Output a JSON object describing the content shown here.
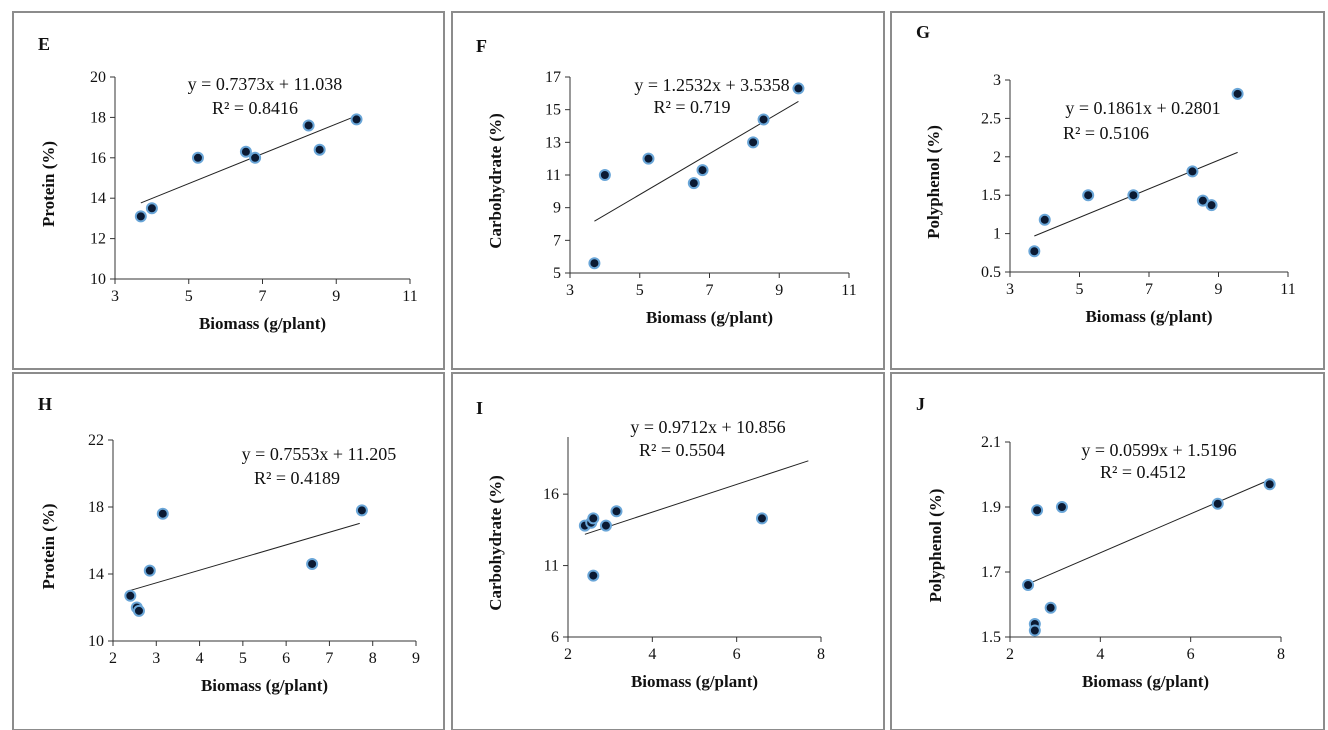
{
  "chart_data": [
    {
      "type": "scatter",
      "panel": "E",
      "xlabel": "Biomass (g/plant)",
      "ylabel": "Protein (%)",
      "xlim": [
        3,
        11
      ],
      "ylim": [
        10,
        20
      ],
      "xticks": [
        "3",
        "5",
        "7",
        "9",
        "11"
      ],
      "yticks": [
        "10",
        "12",
        "14",
        "16",
        "18",
        "20"
      ],
      "x": [
        3.7,
        4.0,
        5.25,
        6.55,
        6.8,
        8.25,
        8.55,
        9.55
      ],
      "y": [
        13.1,
        13.5,
        16.0,
        16.3,
        16.0,
        17.6,
        16.4,
        17.9
      ],
      "equation": "y = 0.7373x + 11.038",
      "r2": "R² = 0.8416",
      "trend_x": [
        3.7,
        9.55
      ]
    },
    {
      "type": "scatter",
      "panel": "F",
      "xlabel": "Biomass (g/plant)",
      "ylabel": "Carbohydrate (%)",
      "xlim": [
        3,
        11
      ],
      "ylim": [
        5,
        17
      ],
      "xticks": [
        "3",
        "5",
        "7",
        "9",
        "11"
      ],
      "yticks": [
        "5",
        "7",
        "9",
        "11",
        "13",
        "15",
        "17"
      ],
      "x": [
        3.7,
        4.0,
        5.25,
        6.55,
        6.8,
        8.25,
        8.55,
        9.55
      ],
      "y": [
        5.6,
        11.0,
        12.0,
        10.5,
        11.3,
        13.0,
        14.4,
        16.3
      ],
      "equation": "y = 1.2532x + 3.5358",
      "r2": "R² = 0.719",
      "trend_x": [
        3.7,
        9.55
      ]
    },
    {
      "type": "scatter",
      "panel": "G",
      "xlabel": "Biomass (g/plant)",
      "ylabel": "Polyphenol (%)",
      "xlim": [
        3,
        11
      ],
      "ylim": [
        0.5,
        3
      ],
      "xticks": [
        "3",
        "5",
        "7",
        "9",
        "11"
      ],
      "yticks": [
        "0.5",
        "1",
        "1.5",
        "2",
        "2.5",
        "3"
      ],
      "x": [
        3.7,
        4.0,
        5.25,
        6.55,
        8.25,
        8.55,
        8.8,
        9.55
      ],
      "y": [
        0.77,
        1.18,
        1.5,
        1.5,
        1.81,
        1.43,
        1.37,
        2.82
      ],
      "equation": "y = 0.1861x + 0.2801",
      "r2": "R² = 0.5106",
      "trend_x": [
        3.7,
        9.55
      ]
    },
    {
      "type": "scatter",
      "panel": "H",
      "xlabel": "Biomass (g/plant)",
      "ylabel": "Protein (%)",
      "xlim": [
        2,
        9
      ],
      "ylim": [
        10,
        22
      ],
      "xticks": [
        "2",
        "3",
        "4",
        "5",
        "6",
        "7",
        "8",
        "9"
      ],
      "yticks": [
        "10",
        "14",
        "18",
        "22"
      ],
      "x": [
        2.4,
        2.55,
        2.6,
        2.85,
        3.15,
        6.6,
        7.75
      ],
      "y": [
        12.7,
        12.0,
        11.8,
        14.2,
        17.6,
        14.6,
        17.8
      ],
      "equation": "y = 0.7553x + 11.205",
      "r2": "R² = 0.4189",
      "trend_x": [
        2.4,
        7.7
      ]
    },
    {
      "type": "scatter",
      "panel": "I",
      "xlabel": "Biomass (g/plant)",
      "ylabel": "Carbohydrate (%)",
      "xlim": [
        2,
        8
      ],
      "ylim": [
        6,
        20
      ],
      "xticks": [
        "2",
        "4",
        "6",
        "8"
      ],
      "yticks": [
        "6",
        "11",
        "16"
      ],
      "x": [
        2.4,
        2.55,
        2.6,
        2.6,
        2.9,
        3.15,
        6.6
      ],
      "y": [
        13.8,
        14.0,
        14.3,
        10.3,
        13.8,
        14.8,
        14.3
      ],
      "equation": "y = 0.9712x + 10.856",
      "r2": "R² = 0.5504",
      "trend_x": [
        2.4,
        7.7
      ]
    },
    {
      "type": "scatter",
      "panel": "J",
      "xlabel": "Biomass (g/plant)",
      "ylabel": "Polyphenol (%)",
      "xlim": [
        2,
        8
      ],
      "ylim": [
        1.5,
        2.1
      ],
      "xticks": [
        "2",
        "4",
        "6",
        "8"
      ],
      "yticks": [
        "1.5",
        "1.7",
        "1.9",
        "2.1"
      ],
      "x": [
        2.4,
        2.55,
        2.55,
        2.6,
        2.9,
        3.15,
        6.6,
        7.75
      ],
      "y": [
        1.66,
        1.54,
        1.52,
        1.89,
        1.59,
        1.9,
        1.91,
        1.97
      ],
      "equation": "y = 0.0599x + 1.5196",
      "r2": "R² = 0.4512",
      "trend_x": [
        2.4,
        7.7
      ]
    }
  ]
}
